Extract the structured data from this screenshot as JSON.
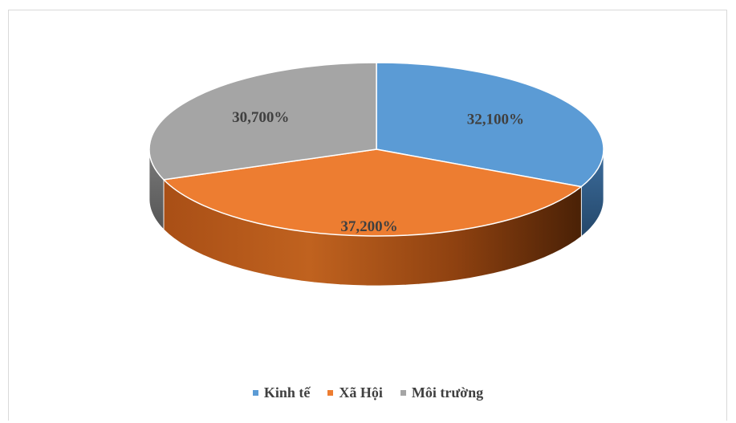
{
  "chart_data": {
    "type": "pie",
    "style": "3d",
    "categories": [
      "Kinh tế",
      "Xã Hội",
      "Môi trường"
    ],
    "values": [
      32.1,
      37.2,
      30.7
    ],
    "value_labels": [
      "32,100%",
      "37,200%",
      "30,700%"
    ],
    "colors": [
      "#5B9BD5",
      "#ED7D31",
      "#A5A5A5"
    ],
    "legend_position": "bottom"
  }
}
